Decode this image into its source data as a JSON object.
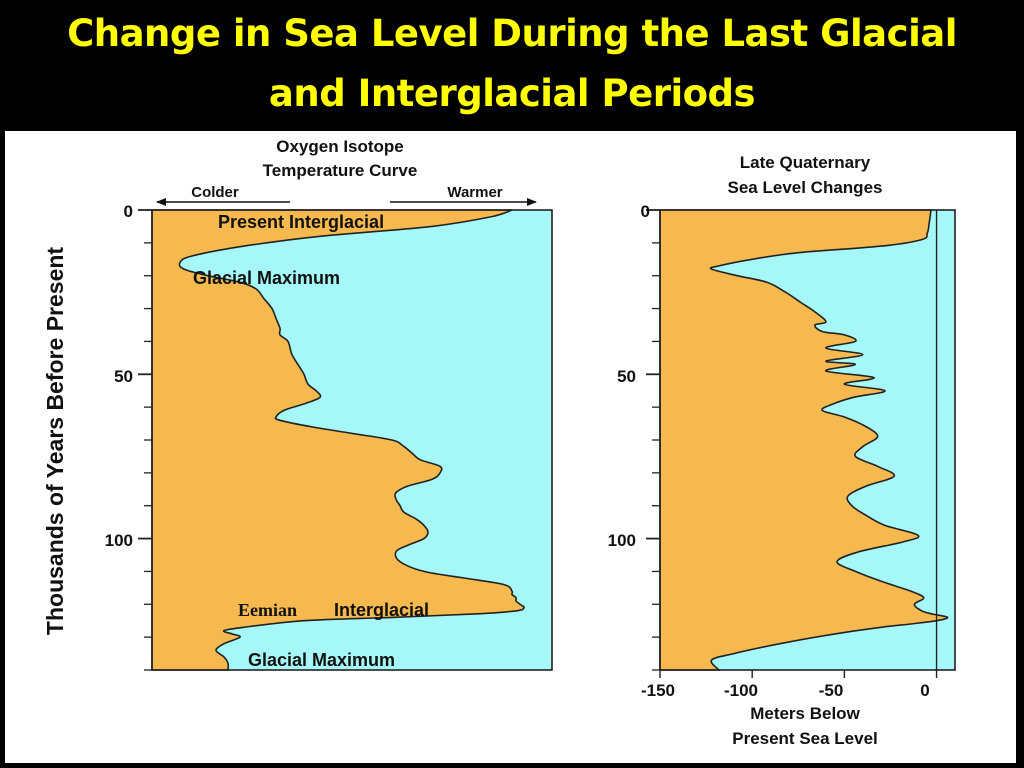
{
  "slide": {
    "title_line1": "Change in Sea Level During the Last Glacial",
    "title_line2": "and Interglacial Periods"
  },
  "colors": {
    "cold_fill": "#f5b94f",
    "warm_fill": "#a6f8f8",
    "title_text": "#ffff00",
    "title_bg": "#000000"
  },
  "shared_axis": {
    "label": "Thousands of Years Before Present"
  },
  "chart_data": [
    {
      "type": "area",
      "title_line1": "Oxygen Isotope",
      "title_line2": "Temperature Curve",
      "colder_label": "Colder",
      "warmer_label": "Warmer",
      "ylim": [
        0,
        140
      ],
      "y_ticks": [
        0,
        50,
        100
      ],
      "y_tick_labels": [
        "0",
        "50",
        "100"
      ],
      "y_minor_step": 10,
      "x_direction": "left = colder, right = warmer (relative scale 0-100)",
      "curve": {
        "y": [
          0,
          2,
          5,
          8,
          11,
          14,
          16,
          18,
          20,
          22,
          24,
          27,
          30,
          33,
          36,
          38,
          40,
          44,
          48,
          50,
          53,
          55,
          57,
          59,
          61,
          63,
          64,
          66,
          68,
          70,
          72,
          74,
          76,
          78,
          80,
          82,
          84,
          86,
          88,
          90,
          92,
          94,
          96,
          98,
          100,
          102,
          104,
          107,
          110,
          112,
          114,
          116,
          117,
          118,
          119,
          120,
          121,
          122,
          123,
          124,
          125,
          127,
          128,
          129,
          130,
          132,
          134,
          136,
          138,
          140
        ],
        "x": [
          90,
          85,
          70,
          42,
          23,
          10,
          7,
          8,
          14,
          22,
          26,
          28,
          30,
          31,
          32,
          32,
          34,
          35,
          37,
          38,
          39,
          41,
          42,
          38,
          33,
          31,
          32,
          40,
          50,
          60,
          63,
          65,
          67,
          72,
          72,
          70,
          64,
          61,
          61,
          62,
          63,
          66,
          68,
          69,
          68,
          64,
          61,
          62,
          68,
          78,
          88,
          90,
          90,
          91,
          91,
          92,
          93,
          91,
          80,
          60,
          38,
          23,
          18,
          20,
          22,
          18,
          16,
          18,
          19,
          19
        ]
      },
      "annotations": [
        {
          "text": "Present Interglacial",
          "y": 3
        },
        {
          "text": "Glacial Maximum",
          "y": 20
        },
        {
          "text": "Eemian",
          "y": 121
        },
        {
          "text": "Interglacial",
          "y": 121
        },
        {
          "text": "Glacial Maximum",
          "y": 137
        }
      ]
    },
    {
      "type": "area",
      "title_line1": "Late Quaternary",
      "title_line2": "Sea Level Changes",
      "xlabel_line1": "Meters Below",
      "xlabel_line2": "Present Sea Level",
      "xlim": [
        -150,
        10
      ],
      "x_ticks": [
        -150,
        -100,
        -50,
        0
      ],
      "x_tick_labels": [
        "-150",
        "-100",
        "-50",
        "0"
      ],
      "ylim": [
        0,
        140
      ],
      "y_ticks": [
        0,
        50,
        100
      ],
      "y_tick_labels": [
        "0",
        "50",
        "100"
      ],
      "y_minor_step": 10,
      "present_sea_level_line": 0,
      "curve": {
        "y": [
          0,
          4,
          7,
          9,
          11,
          13,
          15,
          17,
          18,
          20,
          22,
          25,
          28,
          31,
          34,
          35,
          37,
          38,
          40,
          42,
          44,
          46,
          47,
          49,
          51,
          53,
          55,
          57,
          59,
          61,
          63,
          66,
          69,
          72,
          75,
          78,
          81,
          84,
          87,
          90,
          93,
          96,
          99,
          101,
          104,
          107,
          110,
          113,
          116,
          118,
          120,
          122,
          123,
          124,
          125,
          126,
          127,
          129,
          132,
          135,
          137,
          140
        ],
        "x": [
          -3,
          -4,
          -5,
          -8,
          -30,
          -75,
          -100,
          -118,
          -122,
          -108,
          -92,
          -82,
          -74,
          -66,
          -60,
          -66,
          -62,
          -50,
          -44,
          -60,
          -40,
          -60,
          -44,
          -60,
          -34,
          -50,
          -28,
          -45,
          -56,
          -62,
          -50,
          -38,
          -32,
          -40,
          -44,
          -32,
          -23,
          -38,
          -48,
          -46,
          -38,
          -28,
          -10,
          -18,
          -42,
          -54,
          -44,
          -30,
          -14,
          -7,
          -12,
          -8,
          -2,
          6,
          0,
          -14,
          -30,
          -55,
          -85,
          -110,
          -122,
          -118
        ]
      }
    }
  ]
}
